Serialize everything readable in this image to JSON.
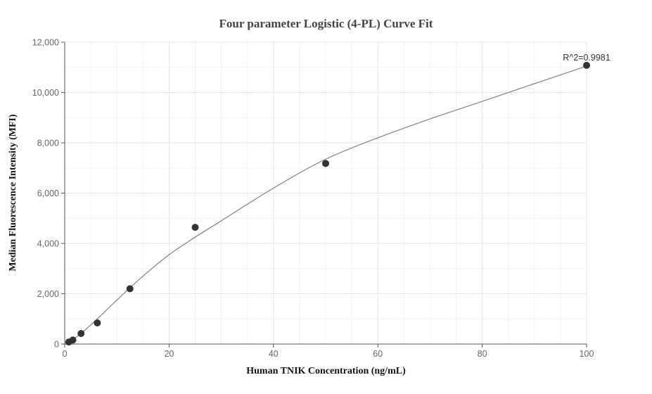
{
  "chart_data": {
    "type": "scatter",
    "title": "Four parameter Logistic (4-PL) Curve Fit",
    "xlabel": "Human TNIK Concentration (ng/mL)",
    "ylabel": "Median Fluorescence Intensity (MFI)",
    "xlim": [
      0,
      100
    ],
    "ylim": [
      0,
      12000
    ],
    "x_ticks": [
      0,
      20,
      40,
      60,
      80,
      100
    ],
    "y_ticks": [
      0,
      2000,
      4000,
      6000,
      8000,
      10000,
      12000
    ],
    "x_tick_labels": [
      "0",
      "20",
      "40",
      "60",
      "80",
      "100"
    ],
    "y_tick_labels": [
      "0",
      "2,000",
      "4,000",
      "6,000",
      "8,000",
      "10,000",
      "12,000"
    ],
    "grid": true,
    "series": [
      {
        "points": [
          {
            "x": 0.78,
            "y": 80
          },
          {
            "x": 1.56,
            "y": 160
          },
          {
            "x": 3.13,
            "y": 420
          },
          {
            "x": 6.25,
            "y": 840
          },
          {
            "x": 12.5,
            "y": 2200
          },
          {
            "x": 25,
            "y": 4640
          },
          {
            "x": 50,
            "y": 7180
          },
          {
            "x": 100,
            "y": 11080
          }
        ],
        "color": "#333333"
      }
    ],
    "fit_curve": {
      "color": "#808080",
      "points": [
        {
          "x": 0.78,
          "y": 60
        },
        {
          "x": 3,
          "y": 400
        },
        {
          "x": 6,
          "y": 950
        },
        {
          "x": 10,
          "y": 1750
        },
        {
          "x": 15,
          "y": 2700
        },
        {
          "x": 20,
          "y": 3550
        },
        {
          "x": 25,
          "y": 4250
        },
        {
          "x": 30,
          "y": 4900
        },
        {
          "x": 40,
          "y": 6200
        },
        {
          "x": 50,
          "y": 7350
        },
        {
          "x": 60,
          "y": 8200
        },
        {
          "x": 70,
          "y": 8950
        },
        {
          "x": 80,
          "y": 9650
        },
        {
          "x": 90,
          "y": 10350
        },
        {
          "x": 100,
          "y": 11050
        }
      ]
    },
    "annotation": {
      "text": "R^2=0.9981",
      "x": 100,
      "y": 11080
    }
  }
}
